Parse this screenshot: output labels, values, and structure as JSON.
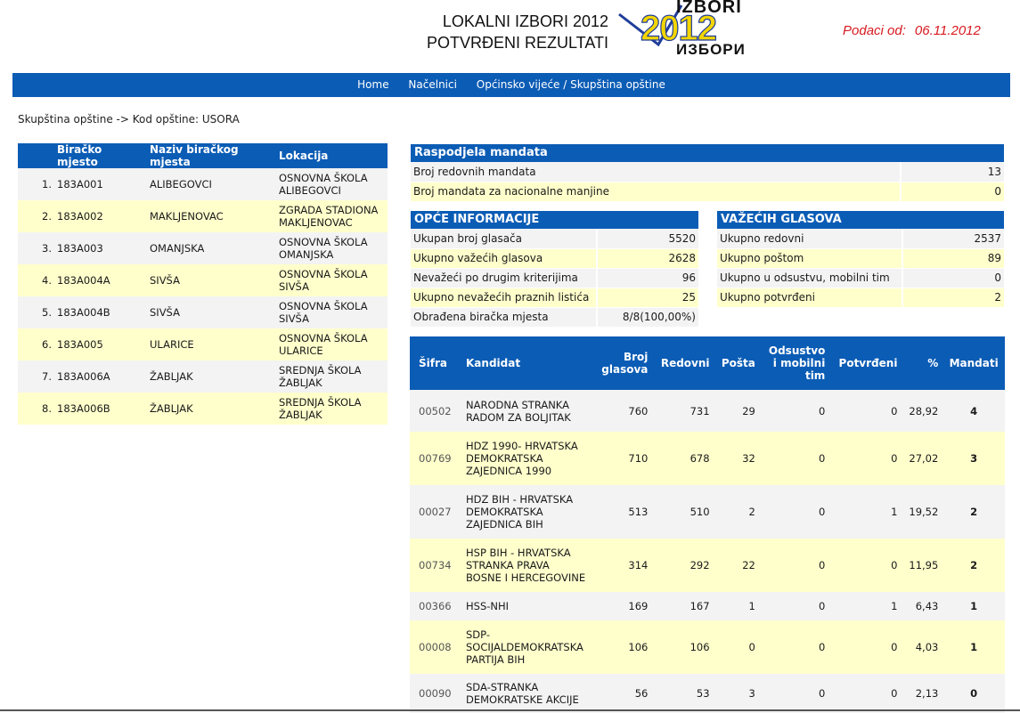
{
  "header": {
    "title_line1": "LOKALNI IZBORI 2012",
    "title_line2": "POTVRĐENI REZULTATI",
    "logo_top": "IZBORI",
    "logo_year": "2012",
    "logo_bottom": "ИЗБОРИ",
    "data_label": "Podaci od:",
    "data_date": "06.11.2012"
  },
  "nav": [
    "Home",
    "Načelnici",
    "Općinsko vijeće / Skupština opštine"
  ],
  "breadcrumb": "Skupština opštine  -> Kod opštine: USORA",
  "polling": {
    "headers": [
      "Biračko mjesto",
      "Naziv biračkog mjesta",
      "Lokacija"
    ],
    "rows": [
      {
        "num": "1.",
        "code": "183A001",
        "name": "ALIBEGOVCI",
        "loc1": "OSNOVNA ŠKOLA",
        "loc2": "ALIBEGOVCI"
      },
      {
        "num": "2.",
        "code": "183A002",
        "name": "MAKLJENOVAC",
        "loc1": "ZGRADA STADIONA",
        "loc2": "MAKLJENOVAC"
      },
      {
        "num": "3.",
        "code": "183A003",
        "name": "OMANJSKA",
        "loc1": "OSNOVNA ŠKOLA",
        "loc2": "OMANJSKA"
      },
      {
        "num": "4.",
        "code": "183A004A",
        "name": "SIVŠA",
        "loc1": "OSNOVNA ŠKOLA",
        "loc2": "SIVŠA"
      },
      {
        "num": "5.",
        "code": "183A004B",
        "name": "SIVŠA",
        "loc1": "OSNOVNA ŠKOLA",
        "loc2": "SIVŠA"
      },
      {
        "num": "6.",
        "code": "183A005",
        "name": "ULARICE",
        "loc1": "OSNOVNA ŠKOLA",
        "loc2": "ULARICE"
      },
      {
        "num": "7.",
        "code": "183A006A",
        "name": "ŽABLJAK",
        "loc1": "SREDNJA ŠKOLA",
        "loc2": "ŽABLJAK"
      },
      {
        "num": "8.",
        "code": "183A006B",
        "name": "ŽABLJAK",
        "loc1": "SREDNJA ŠKOLA",
        "loc2": "ŽABLJAK"
      }
    ]
  },
  "raspodjela": {
    "title": "Raspodjela mandata",
    "rows": [
      {
        "label": "Broj redovnih mandata",
        "value": "13"
      },
      {
        "label": "Broj mandata za nacionalne manjine",
        "value": "0"
      }
    ]
  },
  "opce": {
    "title": "OPĆE INFORMACIJE",
    "rows": [
      {
        "label": "Ukupan broj glasača",
        "value": "5520"
      },
      {
        "label": "Ukupno važećih glasova",
        "value": "2628"
      },
      {
        "label": "Nevažeći po drugim kriterijima",
        "value": "96"
      },
      {
        "label": "Ukupno nevažećih praznih listića",
        "value": "25"
      },
      {
        "label": "Obrađena biračka mjesta",
        "value": "8/8(100,00%)"
      }
    ]
  },
  "vazeci": {
    "title": "VAŽEĆIH GLASOVA",
    "rows": [
      {
        "label": "Ukupno redovni",
        "value": "2537"
      },
      {
        "label": "Ukupno poštom",
        "value": "89"
      },
      {
        "label": "Ukupno u odsustvu, mobilni tim",
        "value": "0"
      },
      {
        "label": "Ukupno potvrđeni",
        "value": "2"
      }
    ]
  },
  "results": {
    "headers": {
      "sifra": "Šifra",
      "kandidat": "Kandidat",
      "broj1": "Broj",
      "broj2": "glasova",
      "redovni": "Redovni",
      "posta": "Pošta",
      "ods1": "Odsustvo",
      "ods2": "i mobilni",
      "ods3": "tim",
      "potvrdeni": "Potvrđeni",
      "pct": "%",
      "mandati": "Mandati"
    },
    "rows": [
      {
        "sifra": "00502",
        "k1": "NARODNA STRANKA",
        "k2": "RADOM ZA BOLJITAK",
        "k3": "",
        "broj": "760",
        "redovni": "731",
        "posta": "29",
        "ods": "0",
        "potv": "0",
        "pct": "28,92",
        "mand": "4"
      },
      {
        "sifra": "00769",
        "k1": "HDZ 1990- HRVATSKA",
        "k2": "DEMOKRATSKA",
        "k3": "ZAJEDNICA 1990",
        "broj": "710",
        "redovni": "678",
        "posta": "32",
        "ods": "0",
        "potv": "0",
        "pct": "27,02",
        "mand": "3"
      },
      {
        "sifra": "00027",
        "k1": "HDZ BIH - HRVATSKA",
        "k2": "DEMOKRATSKA",
        "k3": "ZAJEDNICA BIH",
        "broj": "513",
        "redovni": "510",
        "posta": "2",
        "ods": "0",
        "potv": "1",
        "pct": "19,52",
        "mand": "2"
      },
      {
        "sifra": "00734",
        "k1": "HSP BIH - HRVATSKA",
        "k2": "STRANKA PRAVA",
        "k3": "BOSNE I HERCEGOVINE",
        "broj": "314",
        "redovni": "292",
        "posta": "22",
        "ods": "0",
        "potv": "0",
        "pct": "11,95",
        "mand": "2"
      },
      {
        "sifra": "00366",
        "k1": "HSS-NHI",
        "k2": "",
        "k3": "",
        "broj": "169",
        "redovni": "167",
        "posta": "1",
        "ods": "0",
        "potv": "1",
        "pct": "6,43",
        "mand": "1"
      },
      {
        "sifra": "00008",
        "k1": "SDP-",
        "k2": "SOCIJALDEMOKRATSKA",
        "k3": "PARTIJA BIH",
        "broj": "106",
        "redovni": "106",
        "posta": "0",
        "ods": "0",
        "potv": "0",
        "pct": "4,03",
        "mand": "1"
      },
      {
        "sifra": "00090",
        "k1": "SDA-STRANKA",
        "k2": "DEMOKRATSKE AKCIJE",
        "k3": "",
        "broj": "56",
        "redovni": "53",
        "posta": "3",
        "ods": "0",
        "potv": "0",
        "pct": "2,13",
        "mand": "0"
      }
    ]
  },
  "colors": {
    "header_blue": "#0b5cb5",
    "row_grey": "#f3f3f3",
    "row_yellow": "#ffffcc",
    "date_red": "#d8191f",
    "logo_yellow": "#f2d500",
    "logo_blue": "#1f3d99"
  }
}
